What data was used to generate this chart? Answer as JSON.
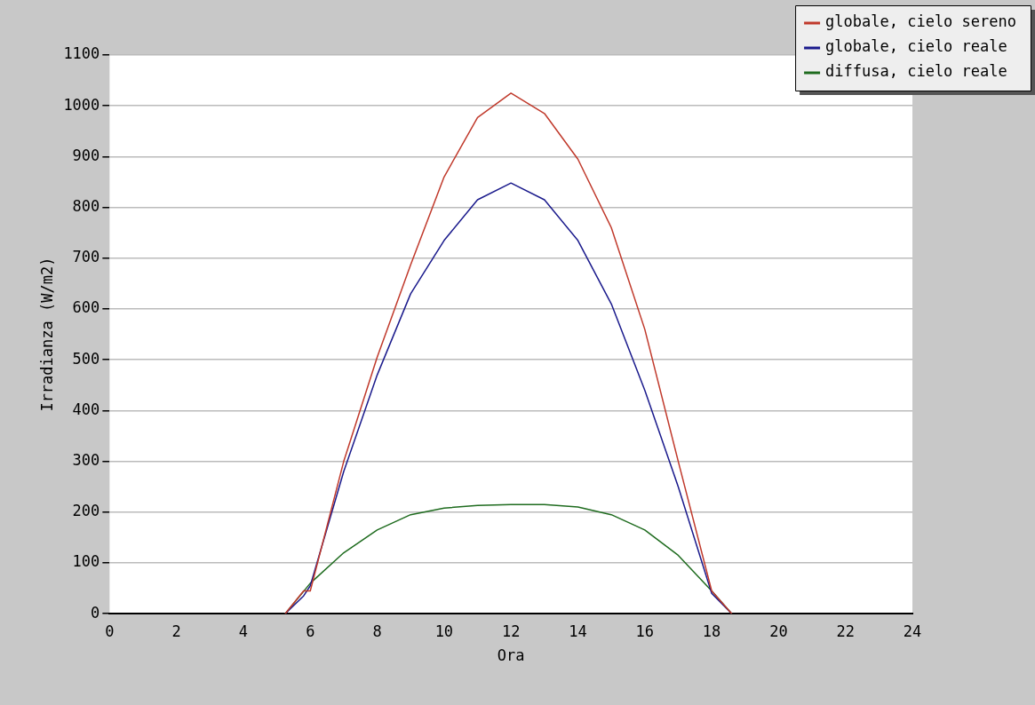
{
  "chart_data": {
    "type": "line",
    "xlabel": "Ora",
    "ylabel": "Irradianza (W/m2)",
    "xlim": [
      0,
      24
    ],
    "xticks": [
      0,
      2,
      4,
      6,
      8,
      10,
      12,
      14,
      16,
      18,
      20,
      22,
      24
    ],
    "ylim": [
      0,
      1100
    ],
    "yticks": [
      0,
      100,
      200,
      300,
      400,
      500,
      600,
      700,
      800,
      900,
      1000,
      1100
    ],
    "grid": "y",
    "legend": "top right",
    "marker": "none",
    "line_style": "solid",
    "series": [
      {
        "name": "globale, cielo sereno",
        "color": "#c0392b",
        "x": [
          5.25,
          5.8,
          6,
          7,
          8,
          9,
          10,
          11,
          12,
          13,
          14,
          15,
          16,
          17,
          18,
          18.6
        ],
        "values": [
          0,
          45,
          45,
          300,
          505,
          687,
          860,
          977,
          1025,
          985,
          895,
          760,
          560,
          300,
          45,
          0
        ]
      },
      {
        "name": "globale, cielo reale",
        "color": "#1a1a8c",
        "x": [
          5.25,
          5.8,
          6,
          7,
          8,
          9,
          10,
          11,
          12,
          13,
          14,
          15,
          16,
          17,
          18,
          18.6
        ],
        "values": [
          0,
          35,
          55,
          280,
          470,
          630,
          735,
          815,
          848,
          815,
          735,
          610,
          440,
          250,
          40,
          0
        ]
      },
      {
        "name": "diffusa, cielo reale",
        "color": "#1e6b1e",
        "x": [
          5.25,
          6,
          7,
          8,
          9,
          10,
          11,
          12,
          13,
          14,
          15,
          16,
          17,
          18,
          18.6
        ],
        "values": [
          0,
          60,
          120,
          165,
          195,
          208,
          213,
          215,
          215,
          210,
          195,
          165,
          115,
          45,
          0
        ]
      }
    ]
  }
}
